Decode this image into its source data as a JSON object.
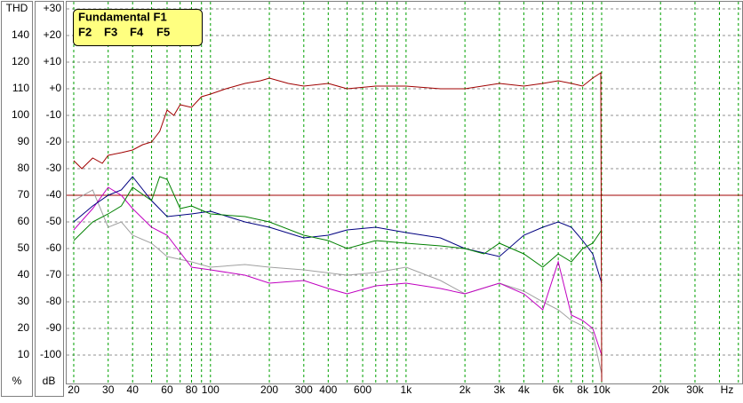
{
  "chart_data": {
    "type": "line",
    "xscale": "log",
    "xlim": [
      18.4,
      52800
    ],
    "xticks": [
      20,
      30,
      40,
      60,
      80,
      100,
      200,
      300,
      400,
      600,
      {
        "value": 1000,
        "label": "1k"
      },
      {
        "value": 2000,
        "label": "2k"
      },
      {
        "value": 3000,
        "label": "3k"
      },
      {
        "value": 4000,
        "label": "4k"
      },
      {
        "value": 6000,
        "label": "6k"
      },
      {
        "value": 8000,
        "label": "8k"
      },
      {
        "value": 10000,
        "label": "10k"
      },
      {
        "value": 20000,
        "label": "20k"
      },
      {
        "value": 30000,
        "label": "30k"
      }
    ],
    "xminor": [
      50,
      70,
      90,
      500,
      700,
      800,
      900,
      5000,
      7000,
      9000,
      40000,
      50000
    ],
    "x_unit": "Hz",
    "ylim": [
      -110,
      31
    ],
    "yticks": [
      {
        "value": 30,
        "label": "+30"
      },
      {
        "value": 20,
        "label": "+20"
      },
      {
        "value": 10,
        "label": "+10"
      },
      {
        "value": 0,
        "label": "+0"
      },
      -10,
      -20,
      -30,
      -40,
      -50,
      -60,
      -70,
      -80,
      -90,
      -100
    ],
    "y_unit": "dB",
    "thd_title": "THD",
    "thd_ticks": [
      140,
      120,
      110,
      100,
      90,
      80,
      70,
      60,
      50,
      40,
      30,
      20,
      10
    ],
    "thd_unit": "%",
    "reference_line": -40,
    "grid": true,
    "series": [
      {
        "name": "Fundamental F1",
        "color": "#a00000",
        "x": [
          20,
          22,
          25,
          28,
          30,
          35,
          40,
          45,
          50,
          55,
          60,
          65,
          70,
          80,
          90,
          100,
          120,
          150,
          180,
          200,
          250,
          300,
          400,
          500,
          700,
          1000,
          1500,
          2000,
          3000,
          4000,
          5000,
          6000,
          7000,
          8000,
          9000,
          9900,
          10000
        ],
        "values": [
          -27,
          -30,
          -26,
          -28,
          -25,
          -24,
          -23,
          -21,
          -20,
          -16,
          -8,
          -10,
          -6,
          -7,
          -3,
          -2,
          0,
          2,
          3,
          4,
          2,
          1,
          2,
          0,
          1,
          1,
          0,
          0,
          2,
          1,
          2,
          3,
          2,
          1,
          4,
          6,
          -110
        ]
      },
      {
        "name": "F2",
        "color": "#008000",
        "x": [
          20,
          25,
          30,
          35,
          40,
          50,
          55,
          60,
          70,
          80,
          100,
          150,
          200,
          300,
          400,
          500,
          700,
          1000,
          1500,
          2000,
          2500,
          3000,
          4000,
          5000,
          6000,
          7000,
          8000,
          9000,
          10000
        ],
        "values": [
          -57,
          -50,
          -47,
          -44,
          -37,
          -42,
          -33,
          -34,
          -45,
          -44,
          -47,
          -48,
          -50,
          -55,
          -57,
          -60,
          -57,
          -58,
          -59,
          -60,
          -62,
          -58,
          -62,
          -67,
          -62,
          -65,
          -60,
          -58,
          -53
        ]
      },
      {
        "name": "F3",
        "color": "#000080",
        "x": [
          20,
          25,
          30,
          35,
          40,
          50,
          60,
          80,
          100,
          150,
          200,
          300,
          400,
          500,
          700,
          1000,
          1500,
          2000,
          3000,
          4000,
          5000,
          6000,
          7000,
          8000,
          9000,
          10000
        ],
        "values": [
          -50,
          -44,
          -40,
          -38,
          -33,
          -42,
          -48,
          -47,
          -46,
          -50,
          -52,
          -56,
          -55,
          -53,
          -52,
          -54,
          -56,
          -60,
          -63,
          -55,
          -52,
          -50,
          -52,
          -57,
          -62,
          -73
        ]
      },
      {
        "name": "F4",
        "color": "#c000c0",
        "x": [
          20,
          25,
          30,
          35,
          40,
          50,
          60,
          80,
          100,
          150,
          200,
          300,
          400,
          500,
          700,
          1000,
          1500,
          2000,
          3000,
          4000,
          5000,
          6000,
          7000,
          8000,
          9000,
          10000
        ],
        "values": [
          -53,
          -45,
          -37,
          -40,
          -45,
          -52,
          -55,
          -67,
          -68,
          -70,
          -73,
          -72,
          -75,
          -77,
          -74,
          -73,
          -75,
          -77,
          -73,
          -77,
          -83,
          -65,
          -85,
          -87,
          -90,
          -100
        ]
      },
      {
        "name": "F5",
        "color": "#a0a0a0",
        "x": [
          20,
          25,
          30,
          35,
          40,
          50,
          60,
          80,
          100,
          150,
          200,
          300,
          500,
          700,
          1000,
          1500,
          2000,
          3000,
          4000,
          5000,
          6000,
          7000,
          8000,
          9000,
          10000
        ],
        "values": [
          -42,
          -38,
          -52,
          -50,
          -55,
          -58,
          -63,
          -65,
          -67,
          -66,
          -67,
          -68,
          -70,
          -69,
          -67,
          -72,
          -77,
          -73,
          -76,
          -80,
          -83,
          -87,
          -89,
          -92,
          -107
        ]
      }
    ]
  }
}
